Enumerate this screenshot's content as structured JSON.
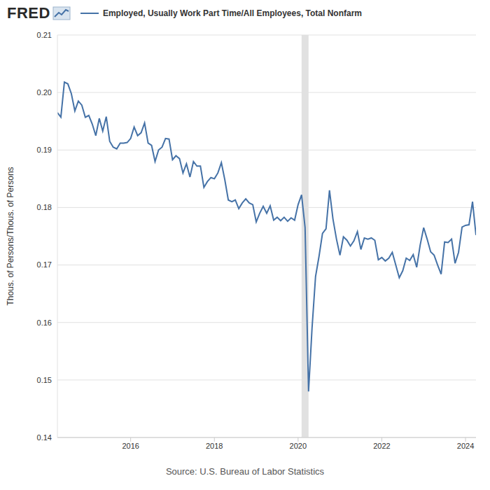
{
  "chart_data": {
    "type": "line",
    "logo": "FRED",
    "source": "Source: U.S. Bureau of Labor Statistics",
    "y_label": "Thous. of Persons/Thous. of Persons",
    "grid": true,
    "recession": [
      2020.083,
      2020.25
    ],
    "x": [
      2014.25,
      2014.333,
      2014.417,
      2014.5,
      2014.583,
      2014.667,
      2014.75,
      2014.833,
      2014.917,
      2015,
      2015.083,
      2015.167,
      2015.25,
      2015.333,
      2015.417,
      2015.5,
      2015.583,
      2015.667,
      2015.75,
      2015.833,
      2015.917,
      2016,
      2016.083,
      2016.167,
      2016.25,
      2016.333,
      2016.417,
      2016.5,
      2016.583,
      2016.667,
      2016.75,
      2016.833,
      2016.917,
      2017,
      2017.083,
      2017.167,
      2017.25,
      2017.333,
      2017.417,
      2017.5,
      2017.583,
      2017.667,
      2017.75,
      2017.833,
      2017.917,
      2018,
      2018.083,
      2018.167,
      2018.25,
      2018.333,
      2018.417,
      2018.5,
      2018.583,
      2018.667,
      2018.75,
      2018.833,
      2018.917,
      2019,
      2019.083,
      2019.167,
      2019.25,
      2019.333,
      2019.417,
      2019.5,
      2019.583,
      2019.667,
      2019.75,
      2019.833,
      2019.917,
      2020,
      2020.083,
      2020.167,
      2020.25,
      2020.333,
      2020.417,
      2020.5,
      2020.583,
      2020.667,
      2020.75,
      2020.833,
      2020.917,
      2021,
      2021.083,
      2021.167,
      2021.25,
      2021.333,
      2021.417,
      2021.5,
      2021.583,
      2021.667,
      2021.75,
      2021.833,
      2021.917,
      2022,
      2022.083,
      2022.167,
      2022.25,
      2022.333,
      2022.417,
      2022.5,
      2022.583,
      2022.667,
      2022.75,
      2022.833,
      2022.917,
      2023,
      2023.083,
      2023.167,
      2023.25,
      2023.333,
      2023.417,
      2023.5,
      2023.583,
      2023.667,
      2023.75,
      2023.833,
      2023.917,
      2024,
      2024.083,
      2024.167,
      2024.25
    ],
    "series": [
      {
        "name": "Employed, Usually Work Part Time/All Employees, Total Nonfarm",
        "color": "#4572a7",
        "values": [
          0.1965,
          0.1957,
          0.2018,
          0.2015,
          0.1998,
          0.1968,
          0.1985,
          0.1978,
          0.1957,
          0.196,
          0.1945,
          0.1925,
          0.1955,
          0.1933,
          0.1958,
          0.1915,
          0.1905,
          0.1902,
          0.1912,
          0.1912,
          0.1913,
          0.192,
          0.194,
          0.1925,
          0.193,
          0.1947,
          0.1912,
          0.1908,
          0.188,
          0.19,
          0.1905,
          0.192,
          0.1919,
          0.1883,
          0.189,
          0.1885,
          0.186,
          0.1876,
          0.1853,
          0.188,
          0.1872,
          0.1872,
          0.1835,
          0.1845,
          0.1852,
          0.185,
          0.186,
          0.1878,
          0.1848,
          0.1813,
          0.181,
          0.1813,
          0.1798,
          0.1808,
          0.1815,
          0.1808,
          0.1805,
          0.1775,
          0.179,
          0.1802,
          0.179,
          0.1803,
          0.1778,
          0.1783,
          0.1777,
          0.1783,
          0.1776,
          0.1782,
          0.1778,
          0.1805,
          0.1822,
          0.1765,
          0.148,
          0.159,
          0.168,
          0.1715,
          0.1755,
          0.1763,
          0.183,
          0.178,
          0.1745,
          0.1717,
          0.1749,
          0.1743,
          0.1733,
          0.1742,
          0.1758,
          0.1727,
          0.1747,
          0.1745,
          0.1747,
          0.1743,
          0.1709,
          0.1713,
          0.1707,
          0.1712,
          0.1722,
          0.17,
          0.1678,
          0.169,
          0.1712,
          0.1708,
          0.1718,
          0.1696,
          0.1735,
          0.1765,
          0.1745,
          0.1723,
          0.1717,
          0.17,
          0.1684,
          0.174,
          0.1739,
          0.1745,
          0.1703,
          0.1722,
          0.1766,
          0.1769,
          0.177,
          0.181,
          0.1752
        ]
      }
    ],
    "xlim": [
      2014.25,
      2024.25
    ],
    "xticks": [
      2016,
      2018,
      2020,
      2022,
      2024
    ],
    "ylim": [
      0.14,
      0.21
    ],
    "yticks": [
      0.14,
      0.15,
      0.16,
      0.17,
      0.18,
      0.19,
      {
        "value": 0.2,
        "label": "0.20"
      },
      0.21
    ]
  }
}
